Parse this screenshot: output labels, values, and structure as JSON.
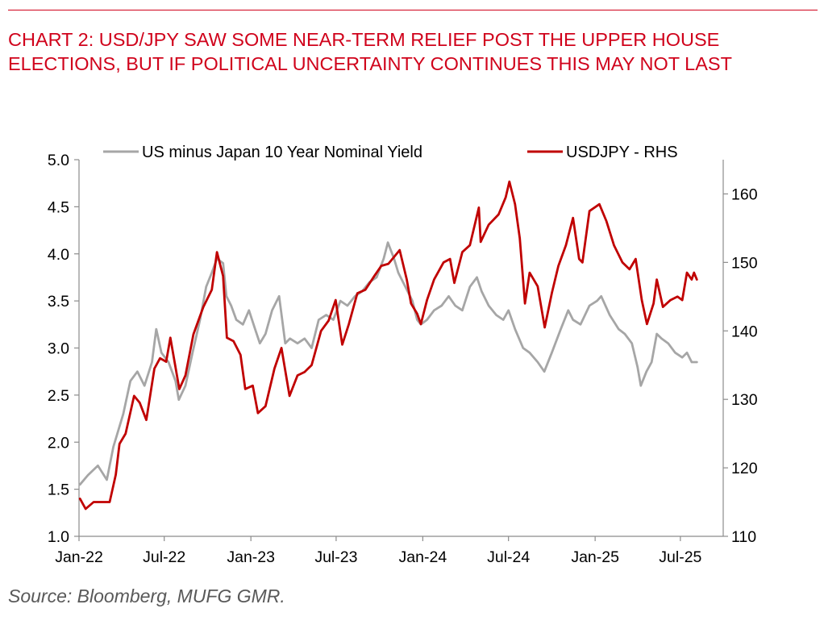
{
  "header": {
    "title": "CHART 2: USD/JPY SAW SOME NEAR-TERM RELIEF POST THE UPPER HOUSE ELECTIONS, BUT IF POLITICAL UNCERTAINTY CONTINUES THIS MAY NOT LAST"
  },
  "footer": {
    "source": "Source: Bloomberg, MUFG GMR."
  },
  "colors": {
    "title": "#d0021b",
    "yield_series": "#a6a6a6",
    "usdjpy_series": "#c00000",
    "axis": "#8c8c8c",
    "source_text": "#595959"
  },
  "chart_data": {
    "type": "line",
    "grid": false,
    "legend_placement": "top",
    "x_tick_labels": [
      "Jan-22",
      "Jul-22",
      "Jan-23",
      "Jul-23",
      "Jan-24",
      "Jul-24",
      "Jan-25",
      "Jul-25"
    ],
    "x_tick_dates": [
      "2022-01-01",
      "2022-07-01",
      "2023-01-01",
      "2023-07-01",
      "2024-01-01",
      "2024-07-01",
      "2025-01-01",
      "2025-07-01"
    ],
    "x_range": [
      "2022-01-01",
      "2025-09-30"
    ],
    "y_left": {
      "ticks": [
        "1.0",
        "1.5",
        "2.0",
        "2.5",
        "3.0",
        "3.5",
        "4.0",
        "4.5",
        "5.0"
      ],
      "min": 1.0,
      "max": 5.0
    },
    "y_right": {
      "ticks": [
        "110",
        "120",
        "130",
        "140",
        "150",
        "160"
      ],
      "min": 110,
      "max": 165
    },
    "series": [
      {
        "name": "US minus Japan 10 Year Nominal Yield",
        "axis": "left",
        "color": "#a6a6a6",
        "points": [
          [
            "2022-01-03",
            1.55
          ],
          [
            "2022-01-20",
            1.65
          ],
          [
            "2022-02-10",
            1.75
          ],
          [
            "2022-03-01",
            1.6
          ],
          [
            "2022-03-15",
            1.95
          ],
          [
            "2022-04-05",
            2.3
          ],
          [
            "2022-04-20",
            2.65
          ],
          [
            "2022-05-05",
            2.75
          ],
          [
            "2022-05-20",
            2.6
          ],
          [
            "2022-06-05",
            2.85
          ],
          [
            "2022-06-14",
            3.2
          ],
          [
            "2022-06-25",
            2.95
          ],
          [
            "2022-07-10",
            2.85
          ],
          [
            "2022-07-25",
            2.65
          ],
          [
            "2022-08-01",
            2.45
          ],
          [
            "2022-08-15",
            2.6
          ],
          [
            "2022-08-30",
            2.95
          ],
          [
            "2022-09-15",
            3.3
          ],
          [
            "2022-09-28",
            3.65
          ],
          [
            "2022-10-10",
            3.8
          ],
          [
            "2022-10-21",
            3.95
          ],
          [
            "2022-11-03",
            3.9
          ],
          [
            "2022-11-10",
            3.55
          ],
          [
            "2022-11-20",
            3.45
          ],
          [
            "2022-12-01",
            3.3
          ],
          [
            "2022-12-15",
            3.25
          ],
          [
            "2022-12-28",
            3.4
          ],
          [
            "2023-01-10",
            3.2
          ],
          [
            "2023-01-20",
            3.05
          ],
          [
            "2023-02-01",
            3.15
          ],
          [
            "2023-02-15",
            3.4
          ],
          [
            "2023-03-02",
            3.55
          ],
          [
            "2023-03-15",
            3.05
          ],
          [
            "2023-03-25",
            3.1
          ],
          [
            "2023-04-10",
            3.05
          ],
          [
            "2023-04-25",
            3.1
          ],
          [
            "2023-05-10",
            3.0
          ],
          [
            "2023-05-25",
            3.3
          ],
          [
            "2023-06-10",
            3.35
          ],
          [
            "2023-06-25",
            3.3
          ],
          [
            "2023-07-10",
            3.5
          ],
          [
            "2023-07-25",
            3.45
          ],
          [
            "2023-08-10",
            3.55
          ],
          [
            "2023-08-25",
            3.6
          ],
          [
            "2023-09-10",
            3.7
          ],
          [
            "2023-09-25",
            3.75
          ],
          [
            "2023-10-10",
            3.95
          ],
          [
            "2023-10-19",
            4.12
          ],
          [
            "2023-11-01",
            3.95
          ],
          [
            "2023-11-10",
            3.8
          ],
          [
            "2023-11-25",
            3.65
          ],
          [
            "2023-12-10",
            3.5
          ],
          [
            "2023-12-20",
            3.3
          ],
          [
            "2023-12-28",
            3.25
          ],
          [
            "2024-01-10",
            3.3
          ],
          [
            "2024-01-25",
            3.4
          ],
          [
            "2024-02-10",
            3.45
          ],
          [
            "2024-02-25",
            3.55
          ],
          [
            "2024-03-10",
            3.45
          ],
          [
            "2024-03-25",
            3.4
          ],
          [
            "2024-04-10",
            3.65
          ],
          [
            "2024-04-25",
            3.75
          ],
          [
            "2024-05-05",
            3.6
          ],
          [
            "2024-05-20",
            3.45
          ],
          [
            "2024-06-05",
            3.35
          ],
          [
            "2024-06-20",
            3.3
          ],
          [
            "2024-07-01",
            3.4
          ],
          [
            "2024-07-15",
            3.2
          ],
          [
            "2024-08-01",
            3.0
          ],
          [
            "2024-08-15",
            2.95
          ],
          [
            "2024-09-01",
            2.85
          ],
          [
            "2024-09-15",
            2.75
          ],
          [
            "2024-10-01",
            2.95
          ],
          [
            "2024-10-20",
            3.2
          ],
          [
            "2024-11-05",
            3.4
          ],
          [
            "2024-11-15",
            3.3
          ],
          [
            "2024-12-01",
            3.25
          ],
          [
            "2024-12-20",
            3.45
          ],
          [
            "2025-01-05",
            3.5
          ],
          [
            "2025-01-14",
            3.55
          ],
          [
            "2025-02-01",
            3.35
          ],
          [
            "2025-02-20",
            3.2
          ],
          [
            "2025-03-05",
            3.15
          ],
          [
            "2025-03-20",
            3.05
          ],
          [
            "2025-04-01",
            2.8
          ],
          [
            "2025-04-08",
            2.6
          ],
          [
            "2025-04-20",
            2.75
          ],
          [
            "2025-05-01",
            2.85
          ],
          [
            "2025-05-12",
            3.15
          ],
          [
            "2025-05-22",
            3.1
          ],
          [
            "2025-06-05",
            3.05
          ],
          [
            "2025-06-20",
            2.95
          ],
          [
            "2025-07-05",
            2.9
          ],
          [
            "2025-07-15",
            2.95
          ],
          [
            "2025-07-25",
            2.85
          ],
          [
            "2025-08-05",
            2.85
          ]
        ]
      },
      {
        "name": "USDJPY - RHS",
        "axis": "right",
        "color": "#c00000",
        "points": [
          [
            "2022-01-03",
            115.5
          ],
          [
            "2022-01-15",
            114.0
          ],
          [
            "2022-02-01",
            115.0
          ],
          [
            "2022-02-20",
            115.0
          ],
          [
            "2022-03-07",
            115.0
          ],
          [
            "2022-03-20",
            119.0
          ],
          [
            "2022-03-28",
            123.5
          ],
          [
            "2022-04-10",
            125.0
          ],
          [
            "2022-04-28",
            130.5
          ],
          [
            "2022-05-10",
            129.5
          ],
          [
            "2022-05-24",
            127.0
          ],
          [
            "2022-06-10",
            134.5
          ],
          [
            "2022-06-22",
            136.0
          ],
          [
            "2022-07-05",
            135.5
          ],
          [
            "2022-07-14",
            139.0
          ],
          [
            "2022-08-02",
            131.5
          ],
          [
            "2022-08-15",
            133.5
          ],
          [
            "2022-09-01",
            139.5
          ],
          [
            "2022-09-22",
            143.5
          ],
          [
            "2022-10-10",
            146.0
          ],
          [
            "2022-10-21",
            151.5
          ],
          [
            "2022-11-03",
            148.0
          ],
          [
            "2022-11-11",
            139.0
          ],
          [
            "2022-11-25",
            138.5
          ],
          [
            "2022-12-10",
            136.5
          ],
          [
            "2022-12-20",
            131.5
          ],
          [
            "2023-01-05",
            132.0
          ],
          [
            "2023-01-16",
            128.0
          ],
          [
            "2023-02-01",
            129.0
          ],
          [
            "2023-02-20",
            134.5
          ],
          [
            "2023-03-07",
            137.5
          ],
          [
            "2023-03-24",
            130.5
          ],
          [
            "2023-04-10",
            133.5
          ],
          [
            "2023-04-25",
            134.0
          ],
          [
            "2023-05-10",
            135.0
          ],
          [
            "2023-05-30",
            140.0
          ],
          [
            "2023-06-15",
            141.5
          ],
          [
            "2023-06-30",
            144.5
          ],
          [
            "2023-07-14",
            138.0
          ],
          [
            "2023-07-28",
            141.0
          ],
          [
            "2023-08-15",
            145.5
          ],
          [
            "2023-09-01",
            146.0
          ],
          [
            "2023-09-20",
            148.0
          ],
          [
            "2023-10-05",
            149.5
          ],
          [
            "2023-10-20",
            149.8
          ],
          [
            "2023-11-13",
            151.8
          ],
          [
            "2023-11-28",
            147.5
          ],
          [
            "2023-12-07",
            144.0
          ],
          [
            "2023-12-20",
            142.5
          ],
          [
            "2023-12-28",
            141.0
          ],
          [
            "2024-01-10",
            144.5
          ],
          [
            "2024-01-25",
            147.5
          ],
          [
            "2024-02-14",
            150.0
          ],
          [
            "2024-02-28",
            150.5
          ],
          [
            "2024-03-08",
            147.0
          ],
          [
            "2024-03-25",
            151.5
          ],
          [
            "2024-04-10",
            152.5
          ],
          [
            "2024-04-29",
            158.0
          ],
          [
            "2024-05-03",
            153.0
          ],
          [
            "2024-05-20",
            155.5
          ],
          [
            "2024-06-10",
            157.0
          ],
          [
            "2024-06-25",
            159.5
          ],
          [
            "2024-07-03",
            161.8
          ],
          [
            "2024-07-15",
            158.5
          ],
          [
            "2024-07-25",
            153.5
          ],
          [
            "2024-08-05",
            144.0
          ],
          [
            "2024-08-15",
            148.5
          ],
          [
            "2024-09-01",
            146.5
          ],
          [
            "2024-09-16",
            140.5
          ],
          [
            "2024-10-01",
            145.5
          ],
          [
            "2024-10-15",
            149.5
          ],
          [
            "2024-10-31",
            152.5
          ],
          [
            "2024-11-15",
            156.5
          ],
          [
            "2024-11-28",
            150.5
          ],
          [
            "2024-12-05",
            150.0
          ],
          [
            "2024-12-20",
            157.5
          ],
          [
            "2025-01-10",
            158.5
          ],
          [
            "2025-01-25",
            156.0
          ],
          [
            "2025-02-10",
            152.5
          ],
          [
            "2025-02-28",
            150.0
          ],
          [
            "2025-03-15",
            149.0
          ],
          [
            "2025-03-28",
            150.5
          ],
          [
            "2025-04-10",
            144.5
          ],
          [
            "2025-04-21",
            141.0
          ],
          [
            "2025-05-05",
            144.0
          ],
          [
            "2025-05-12",
            147.5
          ],
          [
            "2025-05-25",
            143.5
          ],
          [
            "2025-06-10",
            144.5
          ],
          [
            "2025-06-25",
            145.0
          ],
          [
            "2025-07-05",
            144.5
          ],
          [
            "2025-07-15",
            148.5
          ],
          [
            "2025-07-25",
            147.5
          ],
          [
            "2025-07-30",
            148.5
          ],
          [
            "2025-08-05",
            147.5
          ]
        ]
      }
    ]
  }
}
